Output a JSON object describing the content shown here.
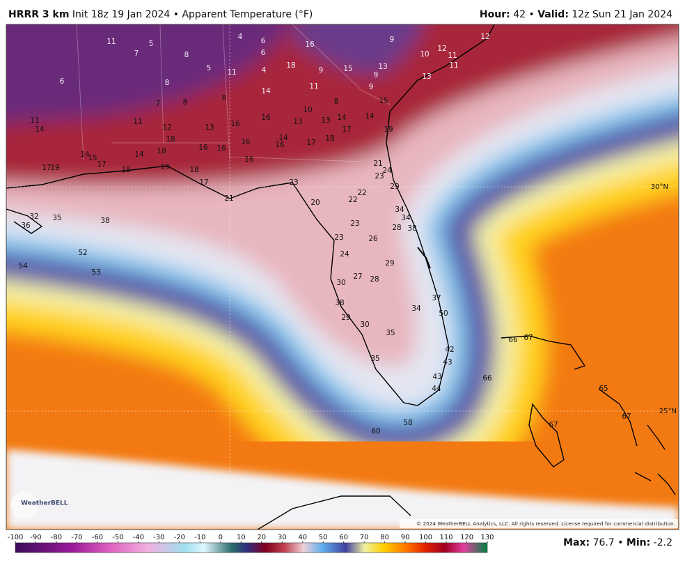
{
  "header": {
    "model": "HRRR 3 km",
    "init": "Init 18z 19 Jan 2024",
    "sep": "•",
    "field": "Apparent Temperature (°F)",
    "hour_label": "Hour:",
    "hour": 42,
    "sep2": "•",
    "valid_label": "Valid:",
    "valid": "12z Sun 21 Jan 2024"
  },
  "stations": [
    11,
    5,
    4,
    6,
    6,
    16,
    9,
    12,
    7,
    8,
    10,
    12,
    11,
    11,
    6,
    5,
    11,
    4,
    18,
    9,
    15,
    13,
    9,
    13,
    8,
    14,
    11,
    9,
    7,
    8,
    8,
    8,
    15,
    10,
    11,
    14,
    11,
    12,
    13,
    16,
    16,
    13,
    13,
    14,
    14,
    17,
    19,
    18,
    14,
    17,
    18,
    16,
    16,
    16,
    16,
    14,
    18,
    14,
    15,
    17,
    16,
    17,
    19,
    18,
    19,
    18,
    21,
    24,
    23,
    17,
    23,
    29,
    22,
    21,
    20,
    22,
    34,
    32,
    35,
    38,
    36,
    34,
    23,
    28,
    38,
    26,
    23,
    52,
    24,
    54,
    29,
    53,
    27,
    28,
    30,
    37,
    34,
    38,
    50,
    29,
    30,
    35,
    42,
    43,
    35,
    43,
    44,
    66,
    65,
    58,
    60,
    67,
    66,
    67,
    67
  ],
  "lat_labels": [
    "30°N",
    "25°N"
  ],
  "logo": "WeatherBELL",
  "copyright": "© 2024 WeatherBELL Analytics, LLC. All rights reserved. License required for commercial distribution.",
  "colorbar": {
    "lim": [
      -100,
      130
    ],
    "ticks": [
      -100,
      -90,
      -80,
      -70,
      -60,
      -50,
      -40,
      -30,
      -20,
      -10,
      0,
      10,
      20,
      30,
      40,
      50,
      60,
      70,
      80,
      90,
      100,
      110,
      120,
      130
    ]
  },
  "stats": {
    "max_label": "Max:",
    "max": 76.7,
    "sep": "•",
    "min_label": "Min:",
    "min": -2.2
  }
}
